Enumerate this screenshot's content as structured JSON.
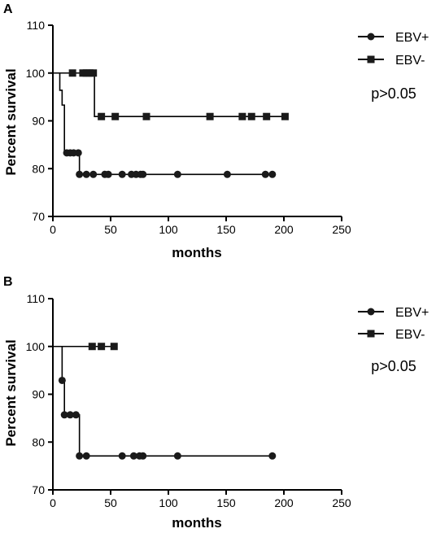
{
  "chart_data": [
    {
      "type": "line",
      "panel": "A",
      "xlabel": "months",
      "ylabel": "Percent survival",
      "xlim": [
        0,
        250
      ],
      "ylim": [
        70,
        110
      ],
      "x_ticks": [
        0,
        50,
        100,
        150,
        200,
        250
      ],
      "y_ticks": [
        70,
        80,
        90,
        100,
        110
      ],
      "legend_position": "top-right",
      "annotation": "p>0.05",
      "series": [
        {
          "name": "EBV+",
          "marker": "circle",
          "steps": [
            [
              0,
              100
            ],
            [
              6,
              96.4
            ],
            [
              8,
              93.3
            ],
            [
              10,
              83.3
            ],
            [
              23,
              78.8
            ],
            [
              190,
              78.8
            ]
          ],
          "censored": [
            [
              12,
              83.3
            ],
            [
              15,
              83.3
            ],
            [
              18,
              83.3
            ],
            [
              22,
              83.3
            ],
            [
              23,
              78.8
            ],
            [
              29,
              78.8
            ],
            [
              35,
              78.8
            ],
            [
              45,
              78.8
            ],
            [
              48,
              78.8
            ],
            [
              60,
              78.8
            ],
            [
              68,
              78.8
            ],
            [
              72,
              78.8
            ],
            [
              76,
              78.8
            ],
            [
              78,
              78.8
            ],
            [
              108,
              78.8
            ],
            [
              151,
              78.8
            ],
            [
              184,
              78.8
            ],
            [
              190,
              78.8
            ]
          ]
        },
        {
          "name": "EBV-",
          "marker": "square",
          "steps": [
            [
              0,
              100
            ],
            [
              36,
              90.9
            ],
            [
              201,
              90.9
            ]
          ],
          "censored": [
            [
              17,
              100
            ],
            [
              26,
              100
            ],
            [
              29,
              100
            ],
            [
              32,
              100
            ],
            [
              35,
              100
            ],
            [
              42,
              90.9
            ],
            [
              54,
              90.9
            ],
            [
              81,
              90.9
            ],
            [
              136,
              90.9
            ],
            [
              164,
              90.9
            ],
            [
              172,
              90.9
            ],
            [
              185,
              90.9
            ],
            [
              201,
              90.9
            ]
          ]
        }
      ]
    },
    {
      "type": "line",
      "panel": "B",
      "xlabel": "months",
      "ylabel": "Percent survival",
      "xlim": [
        0,
        250
      ],
      "ylim": [
        70,
        110
      ],
      "x_ticks": [
        0,
        50,
        100,
        150,
        200,
        250
      ],
      "y_ticks": [
        70,
        80,
        90,
        100,
        110
      ],
      "legend_position": "top-right",
      "annotation": "p>0.05",
      "series": [
        {
          "name": "EBV+",
          "marker": "circle",
          "steps": [
            [
              0,
              100
            ],
            [
              8,
              92.9
            ],
            [
              10,
              85.7
            ],
            [
              23,
              77.1
            ],
            [
              190,
              77.1
            ]
          ],
          "censored": [
            [
              8,
              92.9
            ],
            [
              10,
              85.7
            ],
            [
              15,
              85.7
            ],
            [
              20,
              85.7
            ],
            [
              23,
              77.1
            ],
            [
              29,
              77.1
            ],
            [
              60,
              77.1
            ],
            [
              70,
              77.1
            ],
            [
              75,
              77.1
            ],
            [
              78,
              77.1
            ],
            [
              108,
              77.1
            ],
            [
              190,
              77.1
            ]
          ]
        },
        {
          "name": "EBV-",
          "marker": "square",
          "steps": [
            [
              0,
              100
            ],
            [
              53,
              100
            ]
          ],
          "censored": [
            [
              34,
              100
            ],
            [
              42,
              100
            ],
            [
              53,
              100
            ]
          ]
        }
      ]
    }
  ]
}
